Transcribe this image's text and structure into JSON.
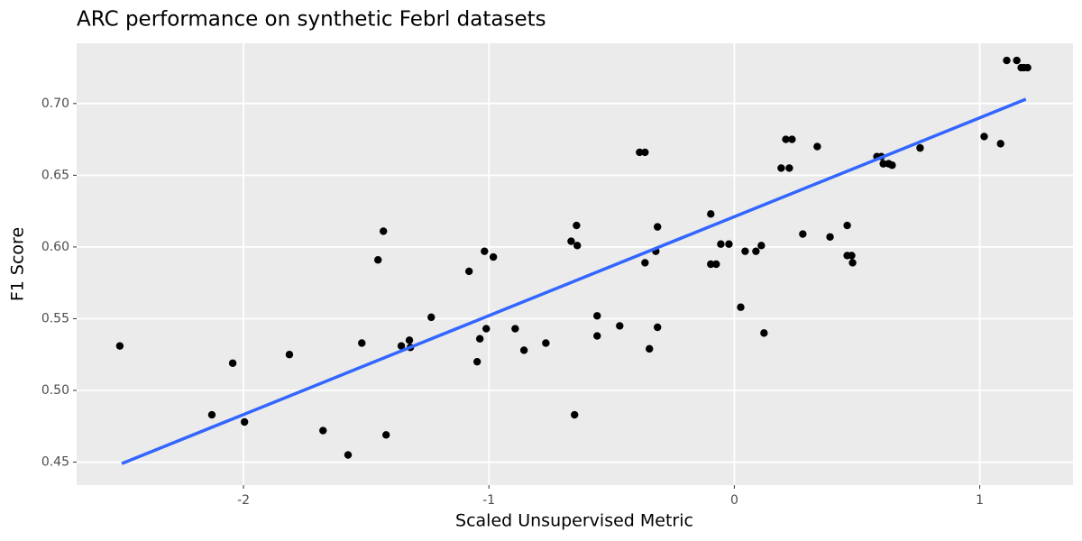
{
  "chart_data": {
    "type": "scatter",
    "title": "ARC performance on synthetic Febrl datasets",
    "x_label": "Scaled Unsupervised Metric",
    "y_label": "F1 Score",
    "xlim": [
      -2.68,
      1.38
    ],
    "ylim": [
      0.434,
      0.742
    ],
    "xticks": [
      -2,
      -1,
      0,
      1
    ],
    "yticks": [
      0.45,
      {
        "value": 0.5,
        "label": "0.50"
      },
      0.55,
      {
        "value": 0.6,
        "label": "0.60"
      },
      0.65,
      {
        "value": 0.7,
        "label": "0.70"
      }
    ],
    "grid": true,
    "series": [
      {
        "color": "#000000",
        "x": [
          -2.504,
          -2.129,
          -2.044,
          -1.996,
          -1.813,
          -1.676,
          -1.574,
          -1.518,
          -1.452,
          -1.43,
          -1.419,
          -1.357,
          -1.324,
          -1.32,
          -1.235,
          -1.081,
          -1.048,
          -1.037,
          -1.018,
          -1.011,
          -0.982,
          -0.893,
          -0.857,
          -0.768,
          -0.665,
          -0.643,
          -0.64,
          -0.651,
          -0.559,
          -0.559,
          -0.467,
          -0.386,
          -0.364,
          -0.364,
          -0.346,
          -0.32,
          -0.313,
          -0.313,
          -0.096,
          -0.096,
          -0.074,
          -0.055,
          -0.022,
          0.026,
          0.044,
          0.088,
          0.11,
          0.121,
          0.191,
          0.21,
          0.224,
          0.235,
          0.279,
          0.338,
          0.39,
          0.46,
          0.46,
          0.478,
          0.482,
          0.581,
          0.599,
          0.607,
          0.629,
          0.643,
          0.757,
          1.018,
          1.085,
          1.11,
          1.151,
          1.169,
          1.18,
          1.195
        ],
        "values": [
          0.531,
          0.483,
          0.519,
          0.478,
          0.525,
          0.472,
          0.455,
          0.533,
          0.591,
          0.611,
          0.469,
          0.531,
          0.535,
          0.53,
          0.551,
          0.583,
          0.52,
          0.536,
          0.597,
          0.543,
          0.593,
          0.543,
          0.528,
          0.533,
          0.604,
          0.615,
          0.601,
          0.483,
          0.552,
          0.538,
          0.545,
          0.666,
          0.666,
          0.589,
          0.529,
          0.597,
          0.614,
          0.544,
          0.623,
          0.588,
          0.588,
          0.602,
          0.602,
          0.558,
          0.597,
          0.597,
          0.601,
          0.54,
          0.655,
          0.675,
          0.655,
          0.675,
          0.609,
          0.67,
          0.607,
          0.615,
          0.594,
          0.594,
          0.589,
          0.663,
          0.663,
          0.658,
          0.658,
          0.657,
          0.669,
          0.677,
          0.672,
          0.73,
          0.73,
          0.725,
          0.725,
          0.725
        ]
      }
    ],
    "trend": {
      "color": "#3366ff",
      "x": [
        -2.496,
        1.188
      ],
      "values": [
        0.449,
        0.703
      ]
    }
  }
}
